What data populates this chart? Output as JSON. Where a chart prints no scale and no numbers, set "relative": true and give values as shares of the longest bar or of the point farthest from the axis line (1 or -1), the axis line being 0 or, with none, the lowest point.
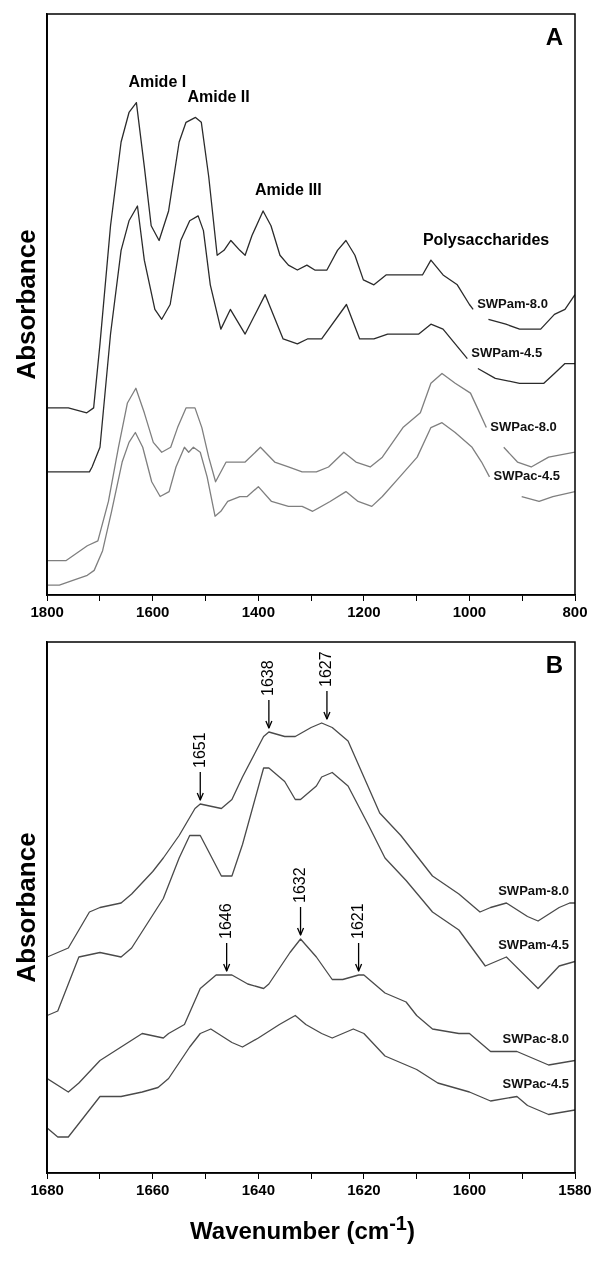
{
  "chart_data": [
    {
      "type": "line",
      "relative": true,
      "ylabel": "Absorbance",
      "marker": "none",
      "xlim": [
        1800,
        800
      ],
      "xticks": [
        1800,
        {
          "value": 1700,
          "label": null
        },
        1600,
        {
          "value": 1500,
          "label": null
        },
        1400,
        {
          "value": 1300,
          "label": null
        },
        1200,
        {
          "value": 1100,
          "label": null
        },
        1000,
        {
          "value": 900,
          "label": null
        },
        800
      ],
      "annotations": [
        "A",
        {
          "text": "Amide I",
          "x": 1631,
          "y": 1.0
        },
        {
          "text": "Amide II",
          "x": 1519,
          "y": 0.97
        },
        {
          "text": "Amide III",
          "x": 1391,
          "y": 0.78
        },
        {
          "text": "Polysaccharides",
          "x": 1073,
          "y": 0.68
        }
      ],
      "series": [
        {
          "name": "SWPam-8.0",
          "color": "#2b2b2b",
          "x": [
            1800,
            1760,
            1725,
            1712,
            1700,
            1680,
            1660,
            1645,
            1631,
            1616,
            1603,
            1588,
            1570,
            1550,
            1537,
            1519,
            1508,
            1494,
            1478,
            1465,
            1452,
            1435,
            1425,
            1412,
            1391,
            1376,
            1359,
            1343,
            1326,
            1308,
            1293,
            1270,
            1250,
            1234,
            1217,
            1201,
            1181,
            1158,
            1135,
            1116,
            1089,
            1073,
            1050,
            1023,
            1000,
            993,
            985,
            964,
            931,
            905,
            865,
            839,
            819,
            800
          ],
          "values": [
            0.38,
            0.38,
            0.37,
            0.38,
            0.51,
            0.75,
            0.92,
            0.98,
            1.0,
            0.87,
            0.75,
            0.72,
            0.78,
            0.92,
            0.96,
            0.97,
            0.96,
            0.85,
            0.69,
            0.7,
            0.72,
            0.7,
            0.69,
            0.73,
            0.78,
            0.75,
            0.69,
            0.67,
            0.66,
            0.67,
            0.66,
            0.66,
            0.7,
            0.72,
            0.69,
            0.64,
            0.63,
            0.65,
            0.65,
            0.65,
            0.65,
            0.68,
            0.65,
            0.63,
            0.59,
            0.58,
            null,
            0.56,
            0.55,
            0.54,
            0.54,
            0.57,
            0.58,
            0.61
          ]
        },
        {
          "name": "SWPam-4.5",
          "color": "#2b2b2b",
          "x": [
            1800,
            1760,
            1720,
            1715,
            1700,
            1680,
            1660,
            1645,
            1629,
            1616,
            1596,
            1583,
            1567,
            1547,
            1530,
            1514,
            1504,
            1491,
            1471,
            1453,
            1425,
            1387,
            1353,
            1326,
            1307,
            1280,
            1233,
            1208,
            1181,
            1155,
            1129,
            1096,
            1073,
            1050,
            1027,
            1004,
            1000,
            984,
            951,
            905,
            859,
            839,
            819,
            800
          ],
          "values": [
            0.25,
            0.25,
            0.25,
            0.26,
            0.3,
            0.53,
            0.7,
            0.76,
            0.79,
            0.68,
            0.58,
            0.56,
            0.59,
            0.72,
            0.76,
            0.77,
            0.74,
            0.63,
            0.54,
            0.58,
            0.53,
            0.61,
            0.52,
            0.51,
            0.52,
            0.52,
            0.59,
            0.52,
            0.52,
            0.53,
            0.53,
            0.53,
            0.55,
            0.54,
            0.51,
            0.48,
            null,
            0.46,
            0.44,
            0.43,
            0.43,
            0.45,
            0.47,
            0.47
          ]
        },
        {
          "name": "SWPac-8.0",
          "color": "#7f7f7f",
          "x": [
            1800,
            1764,
            1724,
            1704,
            1684,
            1665,
            1648,
            1632,
            1616,
            1599,
            1583,
            1566,
            1553,
            1537,
            1520,
            1507,
            1494,
            1481,
            1461,
            1441,
            1425,
            1396,
            1369,
            1343,
            1317,
            1290,
            1267,
            1238,
            1215,
            1188,
            1165,
            1126,
            1093,
            1073,
            1052,
            1027,
            998,
            985,
            968,
            950,
            935,
            909,
            883,
            850,
            800
          ],
          "values": [
            0.07,
            0.07,
            0.1,
            0.11,
            0.19,
            0.3,
            0.39,
            0.42,
            0.37,
            0.31,
            0.29,
            0.3,
            0.34,
            0.38,
            0.38,
            0.34,
            0.28,
            0.23,
            0.27,
            0.27,
            0.27,
            0.3,
            0.27,
            0.26,
            0.25,
            0.25,
            0.26,
            0.29,
            0.27,
            0.26,
            0.28,
            0.34,
            0.37,
            0.43,
            0.45,
            0.43,
            0.41,
            0.38,
            0.34,
            null,
            0.3,
            0.27,
            0.26,
            0.28,
            0.29
          ]
        },
        {
          "name": "SWPac-4.5",
          "color": "#7f7f7f",
          "x": [
            1800,
            1777,
            1750,
            1724,
            1711,
            1695,
            1678,
            1658,
            1645,
            1633,
            1619,
            1602,
            1586,
            1569,
            1556,
            1540,
            1532,
            1523,
            1510,
            1497,
            1482,
            1471,
            1458,
            1435,
            1421,
            1400,
            1375,
            1343,
            1317,
            1297,
            1264,
            1234,
            1211,
            1185,
            1165,
            1132,
            1099,
            1073,
            1052,
            1027,
            995,
            977,
            962,
            930,
            901,
            868,
            842,
            800
          ],
          "values": [
            0.02,
            0.02,
            0.03,
            0.04,
            0.05,
            0.09,
            0.17,
            0.27,
            0.31,
            0.33,
            0.3,
            0.23,
            0.2,
            0.21,
            0.26,
            0.3,
            0.29,
            0.3,
            0.29,
            0.24,
            0.16,
            0.17,
            0.19,
            0.2,
            0.2,
            0.22,
            0.19,
            0.18,
            0.18,
            0.17,
            0.19,
            0.21,
            0.19,
            0.18,
            0.2,
            0.24,
            0.28,
            0.34,
            0.35,
            0.33,
            0.3,
            0.27,
            0.24,
            null,
            0.2,
            0.19,
            0.2,
            0.21
          ]
        }
      ]
    },
    {
      "type": "line",
      "relative": true,
      "ylabel": "Absorbance",
      "xlabel": "Wavenumber (cm$^{-1}$)",
      "marker": "none",
      "xlim": [
        1680,
        1580
      ],
      "xticks": [
        1680,
        {
          "value": 1670,
          "label": null
        },
        1660,
        {
          "value": 1650,
          "label": null
        },
        1640,
        {
          "value": 1630,
          "label": null
        },
        1620,
        {
          "value": 1610,
          "label": null
        },
        1600,
        {
          "value": 1590,
          "label": null
        },
        1580
      ],
      "annotations": [
        "B",
        {
          "text": "1651",
          "x": 1651,
          "y": 0.82
        },
        {
          "text": "1638",
          "x": 1638,
          "y": 0.98
        },
        {
          "text": "1627",
          "x": 1627,
          "y": 1.0
        },
        {
          "text": "1646",
          "x": 1646,
          "y": 0.44
        },
        {
          "text": "1632",
          "x": 1632,
          "y": 0.52
        },
        {
          "text": "1621",
          "x": 1621,
          "y": 0.44
        }
      ],
      "series": [
        {
          "name": "SWPam-8.0",
          "color": "#4a4a4a",
          "x": [
            1680,
            1676,
            1672,
            1670,
            1666,
            1664,
            1660,
            1658,
            1655,
            1652,
            1651,
            1647,
            1645,
            1643,
            1639,
            1638,
            1635,
            1633,
            1630,
            1628,
            1626,
            1623,
            1620,
            1617,
            1613,
            1607,
            1602,
            1598,
            1596,
            1593,
            1589,
            1587,
            1583,
            1581,
            1580
          ],
          "values": [
            0.48,
            0.5,
            0.58,
            0.59,
            0.6,
            0.62,
            0.67,
            0.7,
            0.75,
            0.81,
            0.82,
            0.81,
            0.83,
            0.88,
            0.97,
            0.98,
            0.97,
            0.97,
            0.99,
            1.0,
            0.99,
            0.96,
            0.88,
            0.8,
            0.75,
            0.66,
            0.62,
            0.58,
            0.59,
            0.6,
            0.57,
            0.56,
            0.59,
            0.6,
            0.6
          ]
        },
        {
          "name": "SWPam-4.5",
          "color": "#4a4a4a",
          "x": [
            1680,
            1678,
            1674,
            1670,
            1666,
            1664,
            1658,
            1655,
            1653,
            1651,
            1647,
            1645,
            1643,
            1639,
            1638,
            1635,
            1633,
            1632,
            1629,
            1628,
            1626,
            1623,
            1619,
            1616,
            1612,
            1607,
            1602,
            1597,
            1593,
            1587,
            1583,
            1580
          ],
          "values": [
            0.35,
            0.36,
            0.48,
            0.49,
            0.48,
            0.5,
            0.61,
            0.7,
            0.75,
            0.75,
            0.66,
            0.66,
            0.73,
            0.9,
            0.9,
            0.87,
            0.83,
            0.83,
            0.86,
            0.88,
            0.89,
            0.86,
            0.77,
            0.7,
            0.65,
            0.58,
            0.54,
            0.46,
            0.48,
            0.41,
            0.46,
            0.47
          ]
        },
        {
          "name": "SWPac-8.0",
          "color": "#4a4a4a",
          "x": [
            1680,
            1676,
            1674,
            1670,
            1666,
            1662,
            1658,
            1657,
            1654,
            1651,
            1648,
            1645,
            1642,
            1639,
            1638,
            1634,
            1632,
            1629,
            1626,
            1624,
            1621,
            1620,
            1616,
            1612,
            1610,
            1607,
            1602,
            1600,
            1596,
            1591,
            1585,
            1580
          ],
          "values": [
            0.21,
            0.18,
            0.2,
            0.25,
            0.28,
            0.31,
            0.3,
            0.31,
            0.33,
            0.41,
            0.44,
            0.44,
            0.42,
            0.41,
            0.42,
            0.49,
            0.52,
            0.48,
            0.43,
            0.43,
            0.44,
            0.44,
            0.4,
            0.38,
            0.35,
            0.32,
            0.31,
            0.31,
            0.27,
            0.27,
            0.24,
            0.25
          ]
        },
        {
          "name": "SWPac-4.5",
          "color": "#4a4a4a",
          "x": [
            1680,
            1678,
            1676,
            1674,
            1670,
            1666,
            1662,
            1659,
            1657,
            1653,
            1651,
            1649,
            1645,
            1643,
            1640,
            1636,
            1633,
            1631,
            1628,
            1626,
            1622,
            1620,
            1616,
            1612,
            1610,
            1606,
            1603,
            1600,
            1596,
            1591,
            1589,
            1585,
            1580
          ],
          "values": [
            0.1,
            0.08,
            0.08,
            0.11,
            0.17,
            0.17,
            0.18,
            0.19,
            0.21,
            0.28,
            0.31,
            0.32,
            0.29,
            0.28,
            0.3,
            0.33,
            0.35,
            0.33,
            0.31,
            0.3,
            0.32,
            0.31,
            0.26,
            0.24,
            0.23,
            0.2,
            0.19,
            0.18,
            0.16,
            0.17,
            0.15,
            0.13,
            0.14
          ]
        }
      ]
    }
  ]
}
